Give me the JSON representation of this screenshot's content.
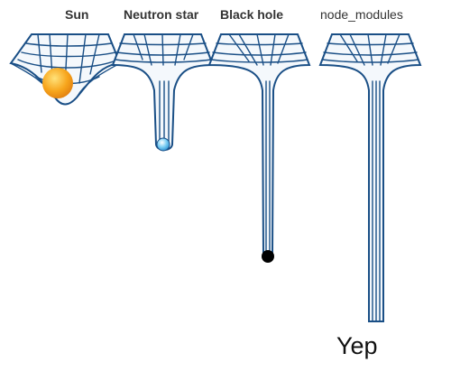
{
  "labels": {
    "sun": "Sun",
    "neutron_star": "Neutron star",
    "black_hole": "Black hole",
    "node_modules": "node_modules"
  },
  "caption": "Yep",
  "colors": {
    "grid": "#1a4f86",
    "tube_fill": "#e9f3fb",
    "sun": "#f7a51c",
    "neutron_star": "#4bb3ea",
    "black_hole": "#000000"
  },
  "icons": [
    "sun-ball-icon",
    "neutron-star-ball-icon",
    "black-hole-ball-icon"
  ]
}
